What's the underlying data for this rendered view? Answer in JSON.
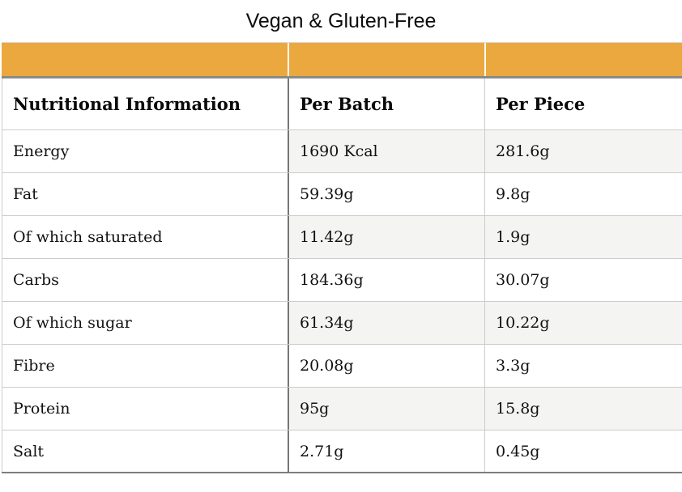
{
  "page": {
    "title": "Vegan & Gluten-Free"
  },
  "table": {
    "header_band": {
      "cells": 3
    },
    "columns": [
      {
        "label": "Nutritional Information"
      },
      {
        "label": "Per Batch"
      },
      {
        "label": "Per Piece"
      }
    ],
    "rows": [
      {
        "label": "Energy",
        "per_batch": "1690 Kcal",
        "per_piece": "281.6g"
      },
      {
        "label": "Fat",
        "per_batch": "59.39g",
        "per_piece": "9.8g"
      },
      {
        "label": "Of which saturated",
        "per_batch": "11.42g",
        "per_piece": "1.9g"
      },
      {
        "label": "Carbs",
        "per_batch": "184.36g",
        "per_piece": "30.07g"
      },
      {
        "label": "Of which sugar",
        "per_batch": "61.34g",
        "per_piece": "10.22g"
      },
      {
        "label": "Fibre",
        "per_batch": "20.08g",
        "per_piece": "3.3g"
      },
      {
        "label": "Protein",
        "per_batch": "95g",
        "per_piece": "15.8g"
      },
      {
        "label": "Salt",
        "per_batch": "2.71g",
        "per_piece": "0.45g"
      }
    ]
  },
  "colors": {
    "accent_orange": "#EAA83E",
    "stripe_bg": "#F4F4F2",
    "divider_dark": "#767676",
    "divider_light": "#CCCCCC",
    "band_underline": "#8A8A8A"
  }
}
